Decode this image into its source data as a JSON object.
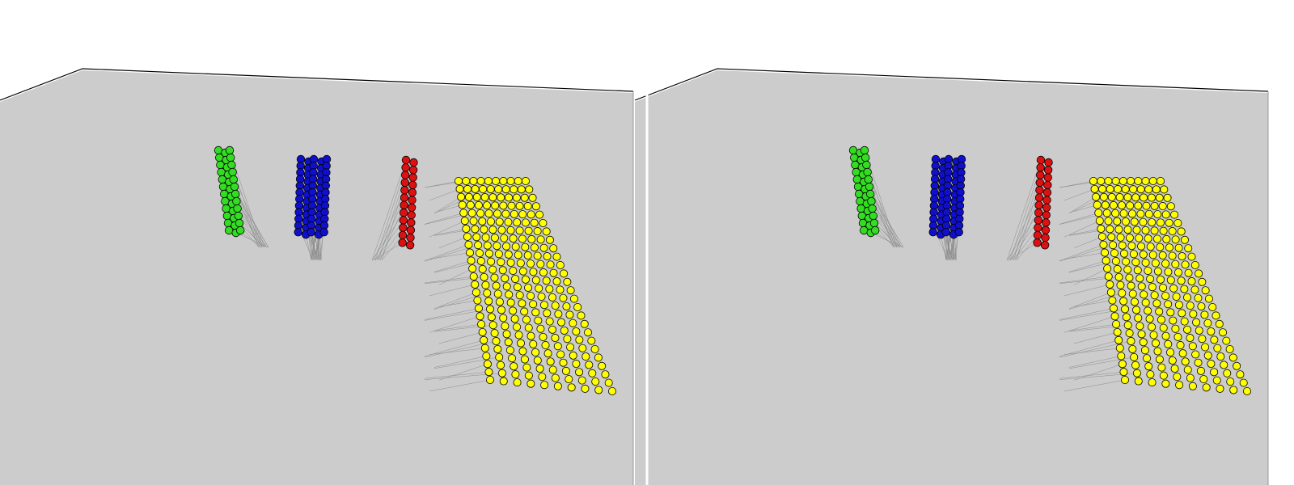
{
  "scene": {
    "background_color": "#ffffff",
    "floor_color": "#cccccc",
    "edge_color": "#000000",
    "stem_color": "#8c8c8c",
    "node_stroke_color": "#000000",
    "views": [
      "left-eye",
      "right-eye"
    ],
    "groups": [
      {
        "name": "green-cluster",
        "color": "#33dd22",
        "rows": 12,
        "cols": 3,
        "shape": "column"
      },
      {
        "name": "blue-cluster",
        "color": "#1010cc",
        "rows": 12,
        "cols": 5,
        "shape": "column"
      },
      {
        "name": "red-cluster",
        "color": "#dd1111",
        "rows": 12,
        "cols": 2,
        "shape": "column"
      },
      {
        "name": "yellow-cluster",
        "color": "#ffff00",
        "rows": 26,
        "cols": 10,
        "shape": "sheet"
      }
    ]
  }
}
